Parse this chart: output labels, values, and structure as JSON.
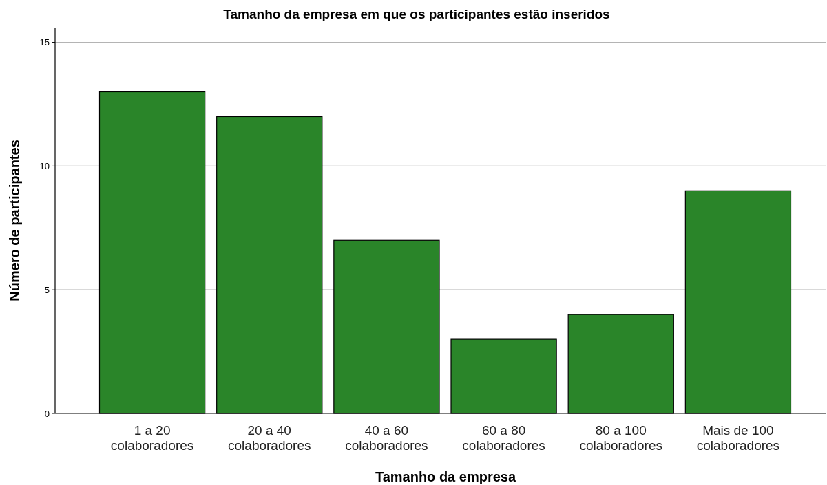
{
  "chart_data": {
    "type": "bar",
    "title": "Tamanho da empresa em que os participantes estão inseridos",
    "xlabel": "Tamanho da empresa",
    "ylabel": "Número de participantes",
    "categories": [
      "1 a 20\ncolaboradores",
      "20 a 40\ncolaboradores",
      "40 a 60\ncolaboradores",
      "60 a 80\ncolaboradores",
      "80 a 100\ncolaboradores",
      "Mais de 100\ncolaboradores"
    ],
    "values": [
      13,
      12,
      7,
      3,
      4,
      9
    ],
    "color": "#2a8529",
    "ylim": [
      0,
      15.6
    ],
    "yticks": [
      0,
      5,
      10,
      15
    ],
    "grid": "y"
  }
}
